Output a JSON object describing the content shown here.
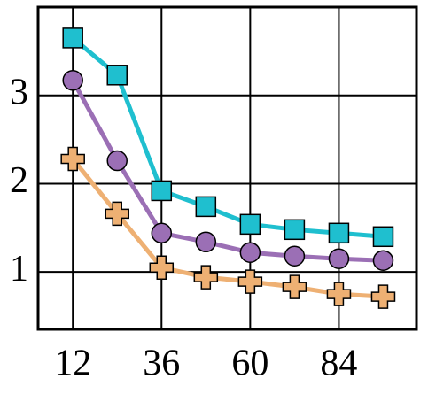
{
  "chart_data": {
    "type": "line",
    "x": [
      12,
      24,
      36,
      48,
      60,
      72,
      84,
      96
    ],
    "series": [
      {
        "color": "#1fbfcf",
        "marker": "square",
        "values": [
          3.65,
          3.23,
          1.92,
          1.74,
          1.54,
          1.48,
          1.44,
          1.4
        ]
      },
      {
        "color": "#9b6fb5",
        "marker": "circle",
        "values": [
          3.17,
          2.26,
          1.44,
          1.34,
          1.22,
          1.18,
          1.15,
          1.13
        ]
      },
      {
        "color": "#eeb073",
        "marker": "plus",
        "values": [
          2.28,
          1.66,
          1.05,
          0.94,
          0.89,
          0.83,
          0.75,
          0.72
        ]
      }
    ],
    "xlim": [
      2.6,
      105
    ],
    "xticks": [
      12,
      36,
      60,
      84
    ],
    "ylim": [
      0.35,
      4
    ],
    "yticks": [
      1,
      2,
      3
    ],
    "grid": true
  }
}
